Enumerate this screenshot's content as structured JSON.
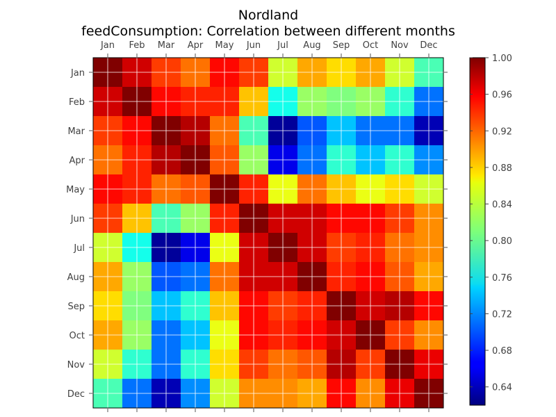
{
  "chart_data": {
    "type": "heatmap",
    "title": "Nordland",
    "subtitle": "feedConsumption: Correlation between different months",
    "x_categories": [
      "Jan",
      "Feb",
      "Mar",
      "Apr",
      "May",
      "Jun",
      "Jul",
      "Aug",
      "Sep",
      "Oct",
      "Nov",
      "Dec"
    ],
    "y_categories": [
      "Jan",
      "Feb",
      "Mar",
      "Apr",
      "May",
      "Jun",
      "Jul",
      "Aug",
      "Sep",
      "Oct",
      "Nov",
      "Dec"
    ],
    "values": [
      [
        1.0,
        0.97,
        0.93,
        0.91,
        0.95,
        0.93,
        0.84,
        0.89,
        0.87,
        0.89,
        0.84,
        0.79
      ],
      [
        0.97,
        1.0,
        0.95,
        0.94,
        0.94,
        0.88,
        0.77,
        0.82,
        0.81,
        0.82,
        0.78,
        0.71
      ],
      [
        0.93,
        0.95,
        1.0,
        0.98,
        0.91,
        0.79,
        0.63,
        0.7,
        0.74,
        0.71,
        0.71,
        0.64
      ],
      [
        0.91,
        0.94,
        0.98,
        1.0,
        0.92,
        0.82,
        0.66,
        0.71,
        0.78,
        0.74,
        0.78,
        0.72
      ],
      [
        0.95,
        0.94,
        0.91,
        0.92,
        1.0,
        0.94,
        0.85,
        0.91,
        0.88,
        0.85,
        0.87,
        0.84
      ],
      [
        0.93,
        0.88,
        0.79,
        0.82,
        0.94,
        1.0,
        0.97,
        0.97,
        0.95,
        0.95,
        0.93,
        0.9
      ],
      [
        0.84,
        0.77,
        0.63,
        0.66,
        0.85,
        0.97,
        1.0,
        0.97,
        0.93,
        0.94,
        0.91,
        0.9
      ],
      [
        0.89,
        0.82,
        0.7,
        0.71,
        0.91,
        0.97,
        0.97,
        1.0,
        0.94,
        0.95,
        0.92,
        0.89
      ],
      [
        0.87,
        0.81,
        0.74,
        0.78,
        0.88,
        0.95,
        0.93,
        0.94,
        1.0,
        0.97,
        0.98,
        0.95
      ],
      [
        0.89,
        0.82,
        0.71,
        0.74,
        0.85,
        0.95,
        0.94,
        0.95,
        0.97,
        1.0,
        0.93,
        0.9
      ],
      [
        0.84,
        0.78,
        0.71,
        0.78,
        0.87,
        0.93,
        0.91,
        0.92,
        0.98,
        0.93,
        1.0,
        0.96
      ],
      [
        0.79,
        0.71,
        0.64,
        0.72,
        0.84,
        0.9,
        0.9,
        0.89,
        0.95,
        0.9,
        0.96,
        1.0
      ]
    ],
    "colorbar": {
      "min": 0.62,
      "max": 1.0,
      "ticks": [
        "0.64",
        "0.68",
        "0.72",
        "0.76",
        "0.80",
        "0.84",
        "0.88",
        "0.92",
        "0.96",
        "1.00"
      ],
      "colormap": "jet"
    }
  }
}
